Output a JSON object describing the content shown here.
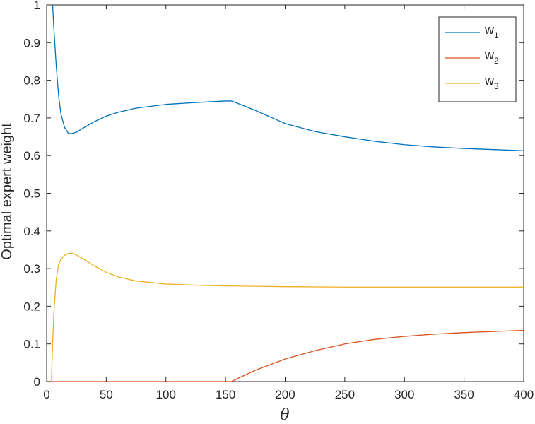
{
  "chart_data": {
    "type": "line",
    "title": "",
    "xlabel": "θ",
    "ylabel": "Optimal expert weight",
    "xlim": [
      0,
      400
    ],
    "ylim": [
      0,
      1
    ],
    "xticks": [
      0,
      50,
      100,
      150,
      200,
      250,
      300,
      350,
      400
    ],
    "yticks": [
      0,
      0.1,
      0.2,
      0.3,
      0.4,
      0.5,
      0.6,
      0.7,
      0.8,
      0.9,
      1
    ],
    "grid": false,
    "legend_position": "top-right",
    "series": [
      {
        "name": "w",
        "subscript": "1",
        "color": "#0072BD",
        "x": [
          5,
          6,
          8,
          10,
          12,
          15,
          18,
          20,
          25,
          30,
          40,
          50,
          60,
          75,
          100,
          125,
          150,
          155,
          160,
          175,
          200,
          225,
          250,
          275,
          300,
          325,
          350,
          375,
          400
        ],
        "y": [
          1.0,
          0.94,
          0.84,
          0.76,
          0.71,
          0.675,
          0.66,
          0.658,
          0.662,
          0.672,
          0.69,
          0.705,
          0.715,
          0.726,
          0.736,
          0.741,
          0.745,
          0.745,
          0.739,
          0.72,
          0.685,
          0.664,
          0.65,
          0.638,
          0.629,
          0.623,
          0.619,
          0.616,
          0.613
        ]
      },
      {
        "name": "w",
        "subscript": "2",
        "color": "#D95319",
        "x": [
          0,
          50,
          100,
          150,
          155,
          160,
          175,
          200,
          225,
          250,
          275,
          300,
          325,
          350,
          375,
          400
        ],
        "y": [
          0,
          0,
          0,
          0,
          0,
          0.008,
          0.03,
          0.06,
          0.082,
          0.1,
          0.112,
          0.12,
          0.126,
          0.13,
          0.133,
          0.136
        ]
      },
      {
        "name": "w",
        "subscript": "3",
        "color": "#EDB120",
        "x": [
          0,
          4,
          5,
          6,
          8,
          10,
          12,
          15,
          18,
          20,
          22,
          25,
          30,
          40,
          50,
          60,
          75,
          100,
          125,
          150,
          175,
          200,
          250,
          300,
          350,
          400
        ],
        "y": [
          0,
          0,
          0.1,
          0.18,
          0.27,
          0.31,
          0.325,
          0.335,
          0.34,
          0.341,
          0.34,
          0.336,
          0.327,
          0.307,
          0.29,
          0.278,
          0.267,
          0.259,
          0.256,
          0.254,
          0.253,
          0.252,
          0.251,
          0.251,
          0.251,
          0.251
        ]
      }
    ]
  }
}
